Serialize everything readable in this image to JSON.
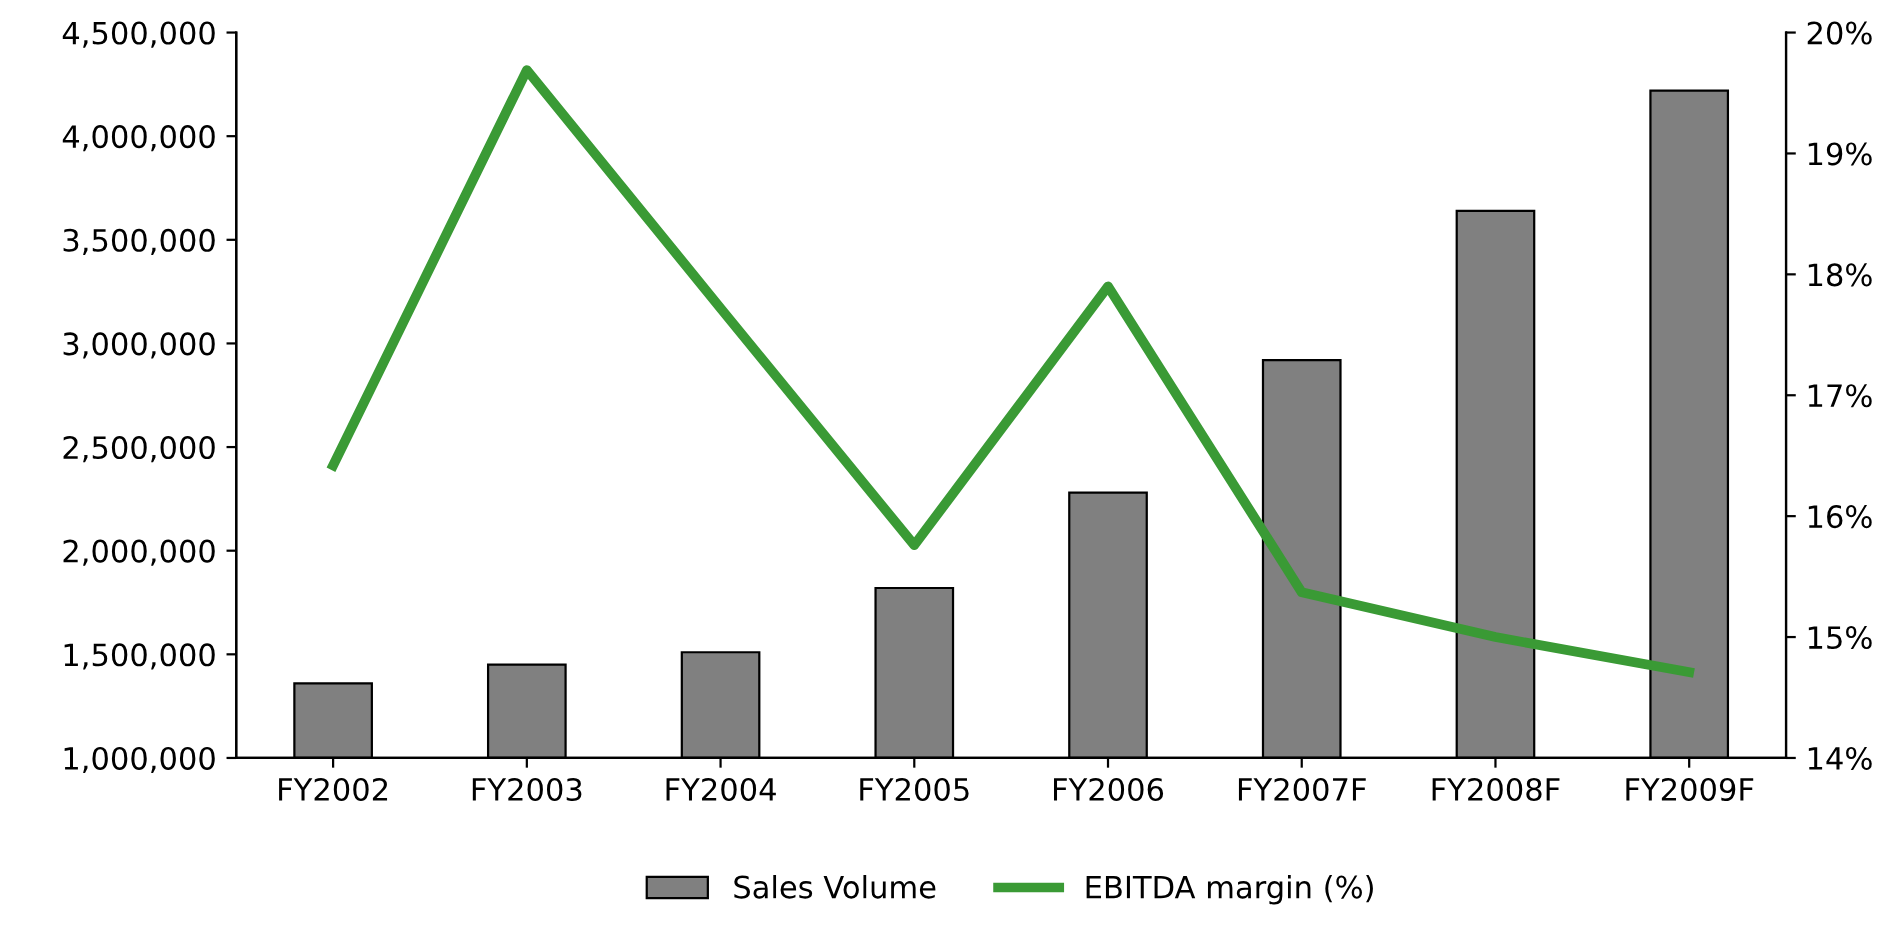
{
  "chart_data": {
    "type": "bar",
    "categories": [
      "FY2002",
      "FY2003",
      "FY2004",
      "FY2005",
      "FY2006",
      "FY2007F",
      "FY2008F",
      "FY2009F"
    ],
    "series": [
      {
        "name": "Sales Volume",
        "color": "#808080",
        "values": [
          1360000,
          1450000,
          1510000,
          1820000,
          2280000,
          2920000,
          3640000,
          4220000
        ]
      },
      {
        "name": "EBITDA margin (%)",
        "type": "line",
        "axis": "y2",
        "color": "#3a9a35",
        "values": [
          16.42,
          19.69,
          17.72,
          15.76,
          17.9,
          15.37,
          15.0,
          14.71
        ]
      }
    ],
    "ylim": [
      1000000,
      4500000
    ],
    "yticks": [
      {
        "value": 1000000,
        "label": "1,000,000"
      },
      {
        "value": 1500000,
        "label": "1,500,000"
      },
      {
        "value": 2000000,
        "label": "2,000,000"
      },
      {
        "value": 2500000,
        "label": "2,500,000"
      },
      {
        "value": 3000000,
        "label": "3,000,000"
      },
      {
        "value": 3500000,
        "label": "3,500,000"
      },
      {
        "value": 4000000,
        "label": "4,000,000"
      },
      {
        "value": 4500000,
        "label": "4,500,000"
      }
    ],
    "y2lim": [
      14,
      20
    ],
    "y2ticks": [
      {
        "value": 14,
        "label": "14%"
      },
      {
        "value": 15,
        "label": "15%"
      },
      {
        "value": 16,
        "label": "16%"
      },
      {
        "value": 17,
        "label": "17%"
      },
      {
        "value": 18,
        "label": "18%"
      },
      {
        "value": 19,
        "label": "19%"
      },
      {
        "value": 20,
        "label": "20%"
      }
    ],
    "legend": "bottom",
    "marker": "none",
    "line_style": "solid"
  }
}
